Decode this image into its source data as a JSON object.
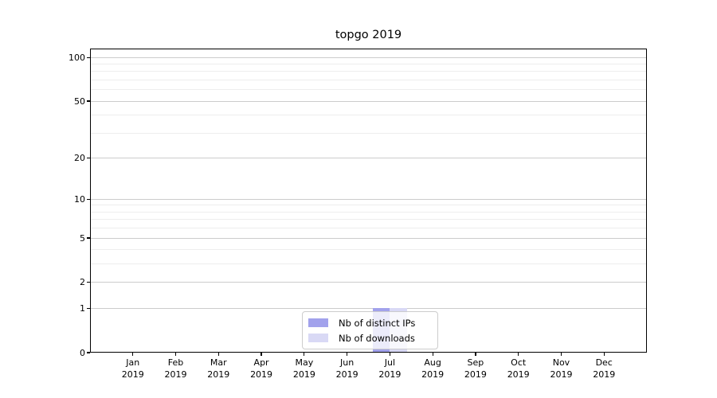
{
  "chart_data": {
    "type": "bar",
    "title": "topgo 2019",
    "categories": [
      "Jan",
      "Feb",
      "Mar",
      "Apr",
      "May",
      "Jun",
      "Jul",
      "Aug",
      "Sep",
      "Oct",
      "Nov",
      "Dec"
    ],
    "x_year_label": "2019",
    "series": [
      {
        "name": "Nb of distinct IPs",
        "color": "#a2a2ec",
        "values": [
          0,
          0,
          0,
          0,
          0,
          0,
          1,
          0,
          0,
          0,
          0,
          0
        ]
      },
      {
        "name": "Nb of downloads",
        "color": "#d9d9f5",
        "values": [
          0,
          0,
          0,
          0,
          0,
          0,
          1,
          0,
          0,
          0,
          0,
          0
        ]
      }
    ],
    "y_scale": "log1p",
    "y_axis_max": 115,
    "y_major_ticks": [
      100,
      50,
      20,
      10,
      5,
      2,
      1,
      0
    ],
    "y_minor_ticks": [
      90,
      80,
      70,
      60,
      40,
      30,
      9,
      8,
      7,
      6,
      4,
      3
    ],
    "grid": true,
    "legend_position": "lower center",
    "colors": {
      "major_grid": "#cccccc",
      "minor_grid": "#ededed",
      "spine": "#000000",
      "text": "#000000",
      "background": "#ffffff"
    }
  }
}
